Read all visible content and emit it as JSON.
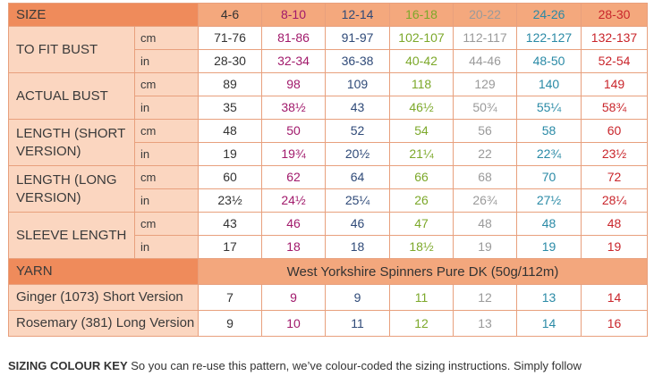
{
  "header": {
    "label": "SIZE",
    "sizes": [
      "4-6",
      "8-10",
      "12-14",
      "16-18",
      "20-22",
      "24-26",
      "28-30"
    ]
  },
  "rows": [
    {
      "label": "TO FIT BUST",
      "cm": [
        "71-76",
        "81-86",
        "91-97",
        "102-107",
        "112-117",
        "122-127",
        "132-137"
      ],
      "in": [
        "28-30",
        "32-34",
        "36-38",
        "40-42",
        "44-46",
        "48-50",
        "52-54"
      ]
    },
    {
      "label": "ACTUAL BUST",
      "cm": [
        "89",
        "98",
        "109",
        "118",
        "129",
        "140",
        "149"
      ],
      "in": [
        "35",
        "38½",
        "43",
        "46½",
        "50¾",
        "55¼",
        "58¾"
      ]
    },
    {
      "label": "LENGTH (SHORT VERSION)",
      "cm": [
        "48",
        "50",
        "52",
        "54",
        "56",
        "58",
        "60"
      ],
      "in": [
        "19",
        "19¾",
        "20½",
        "21¼",
        "22",
        "22¾",
        "23½"
      ]
    },
    {
      "label": "LENGTH (LONG VERSION)",
      "cm": [
        "60",
        "62",
        "64",
        "66",
        "68",
        "70",
        "72"
      ],
      "in": [
        "23½",
        "24½",
        "25¼",
        "26",
        "26¾",
        "27½",
        "28¼"
      ]
    },
    {
      "label": "SLEEVE LENGTH",
      "cm": [
        "43",
        "46",
        "46",
        "47",
        "48",
        "48",
        "48"
      ],
      "in": [
        "17",
        "18",
        "18",
        "18½",
        "19",
        "19",
        "19"
      ]
    }
  ],
  "units": {
    "cm": "cm",
    "in": "in"
  },
  "yarn": {
    "label": "YARN",
    "name": "West Yorkshire Spinners Pure DK (50g/112m)",
    "shades": [
      {
        "label": "Ginger (1073) Short Version",
        "values": [
          "7",
          "9",
          "9",
          "11",
          "12",
          "13",
          "14"
        ]
      },
      {
        "label": "Rosemary (381) Long Version",
        "values": [
          "9",
          "10",
          "11",
          "12",
          "13",
          "14",
          "16"
        ]
      }
    ]
  },
  "footer": {
    "title": "SIZING COLOUR KEY",
    "text": " So you can re-use this pattern, we’ve colour-coded the sizing instructions. Simply follow"
  },
  "size_colors": [
    "#333333",
    "#a1196b",
    "#2f4a78",
    "#7ca82a",
    "#9a9a9a",
    "#2a8aa6",
    "#c9252b"
  ]
}
